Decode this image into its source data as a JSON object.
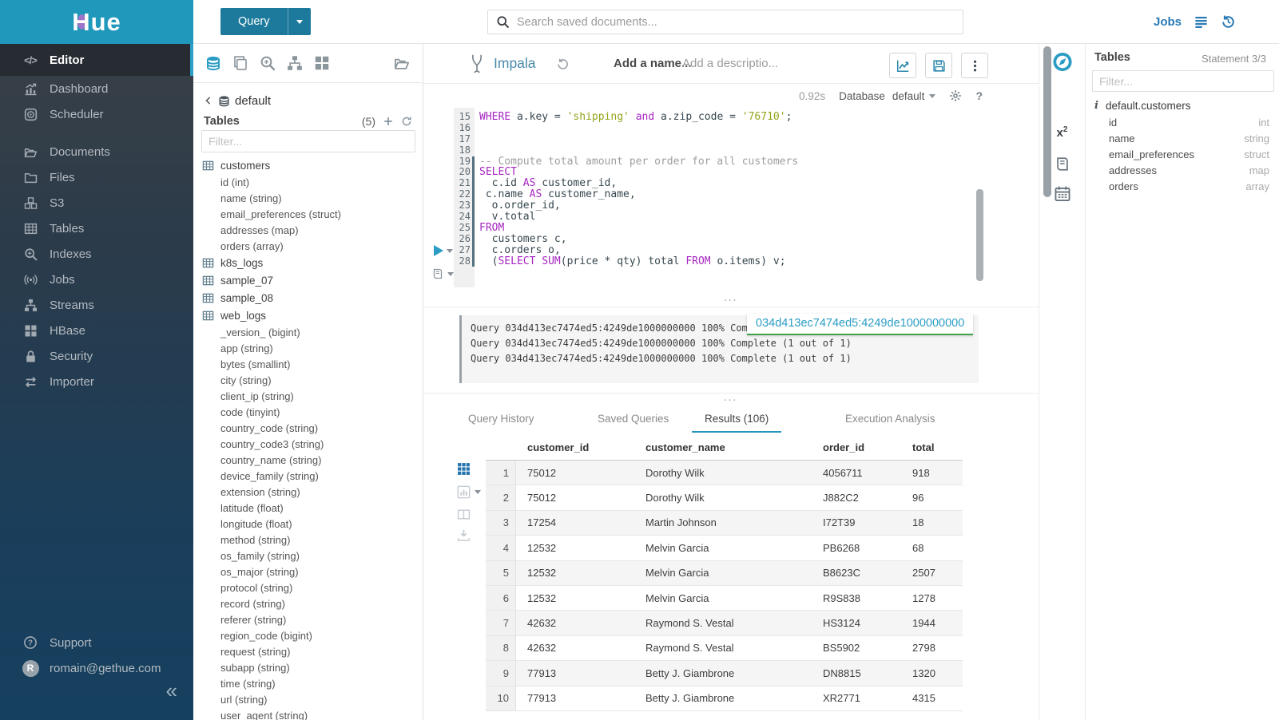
{
  "brand": {
    "letter": "H",
    "rest": "ue"
  },
  "topbar": {
    "query_label": "Query",
    "search_placeholder": "Search saved documents...",
    "jobs_label": "Jobs"
  },
  "sidebar": {
    "items": [
      {
        "label": "Editor",
        "icon": "code-icon",
        "active": true
      },
      {
        "label": "Dashboard",
        "icon": "dashboard-icon"
      },
      {
        "label": "Scheduler",
        "icon": "scheduler-icon"
      },
      {
        "label": "Documents",
        "icon": "documents-icon",
        "gap": true
      },
      {
        "label": "Files",
        "icon": "folder-icon"
      },
      {
        "label": "S3",
        "icon": "cubes-icon"
      },
      {
        "label": "Tables",
        "icon": "table-icon"
      },
      {
        "label": "Indexes",
        "icon": "search-plus-icon"
      },
      {
        "label": "Jobs",
        "icon": "signal-icon"
      },
      {
        "label": "Streams",
        "icon": "sitemap-icon"
      },
      {
        "label": "HBase",
        "icon": "grid-icon"
      },
      {
        "label": "Security",
        "icon": "lock-icon"
      },
      {
        "label": "Importer",
        "icon": "swap-icon"
      }
    ],
    "support_label": "Support",
    "user_email": "romain@gethue.com",
    "avatar_initial": "R",
    "collapse_glyph": "«"
  },
  "left_assist": {
    "breadcrumb": "default",
    "title": "Tables",
    "count": "(5)",
    "filter_placeholder": "Filter...",
    "tree": [
      {
        "name": "customers",
        "columns": [
          "id (int)",
          "name (string)",
          "email_preferences (struct)",
          "addresses (map)",
          "orders (array)"
        ]
      },
      {
        "name": "k8s_logs",
        "columns": []
      },
      {
        "name": "sample_07",
        "columns": []
      },
      {
        "name": "sample_08",
        "columns": []
      },
      {
        "name": "web_logs",
        "columns": [
          "_version_ (bigint)",
          "app (string)",
          "bytes (smallint)",
          "city (string)",
          "client_ip (string)",
          "code (tinyint)",
          "country_code (string)",
          "country_code3 (string)",
          "country_name (string)",
          "device_family (string)",
          "extension (string)",
          "latitude (float)",
          "longitude (float)",
          "method (string)",
          "os_family (string)",
          "os_major (string)",
          "protocol (string)",
          "record (string)",
          "referer (string)",
          "region_code (bigint)",
          "request (string)",
          "subapp (string)",
          "time (string)",
          "url (string)",
          "user_agent (string)"
        ]
      }
    ]
  },
  "editor": {
    "engine": "Impala",
    "name_placeholder": "Add a name...",
    "description_placeholder": "Add a descriptio...",
    "execution_time": "0.92s",
    "database_label": "Database",
    "database_value": "default",
    "lines": [
      {
        "n": 15,
        "segs": [
          [
            "kw",
            "WHERE"
          ],
          [
            "pln",
            " a.key = "
          ],
          [
            "str",
            "'shipping'"
          ],
          [
            "pln",
            " "
          ],
          [
            "kw",
            "and"
          ],
          [
            "pln",
            " a.zip_code = "
          ],
          [
            "str",
            "'76710'"
          ],
          [
            "pln",
            ";"
          ]
        ]
      },
      {
        "n": 16,
        "segs": []
      },
      {
        "n": 17,
        "segs": []
      },
      {
        "n": 18,
        "segs": []
      },
      {
        "n": 19,
        "marker": true,
        "segs": [
          [
            "cm",
            "-- Compute total amount per order for all customers"
          ]
        ]
      },
      {
        "n": 20,
        "marker": true,
        "segs": [
          [
            "kw",
            "SELECT"
          ]
        ]
      },
      {
        "n": 21,
        "marker": true,
        "segs": [
          [
            "pln",
            "  c.id "
          ],
          [
            "kw",
            "AS"
          ],
          [
            "pln",
            " customer_id,"
          ]
        ]
      },
      {
        "n": 22,
        "marker": true,
        "segs": [
          [
            "pln",
            " c.name "
          ],
          [
            "kw",
            "AS"
          ],
          [
            "pln",
            " customer_name,"
          ]
        ]
      },
      {
        "n": 23,
        "marker": true,
        "segs": [
          [
            "pln",
            "  o.order_id,"
          ]
        ]
      },
      {
        "n": 24,
        "marker": true,
        "segs": [
          [
            "pln",
            "  v.total"
          ]
        ]
      },
      {
        "n": 25,
        "marker": true,
        "segs": [
          [
            "kw",
            "FROM"
          ]
        ]
      },
      {
        "n": 26,
        "marker": true,
        "segs": [
          [
            "pln",
            "  customers c,"
          ]
        ]
      },
      {
        "n": 27,
        "marker": true,
        "segs": [
          [
            "pln",
            "  c.orders o,"
          ]
        ]
      },
      {
        "n": 28,
        "marker": true,
        "segs": [
          [
            "pln",
            "  ("
          ],
          [
            "kw",
            "SELECT"
          ],
          [
            "pln",
            " "
          ],
          [
            "kw",
            "SUM"
          ],
          [
            "pln",
            "(price * qty) total "
          ],
          [
            "kw",
            "FROM"
          ],
          [
            "pln",
            " o.items) v;"
          ]
        ]
      }
    ],
    "log_lines": [
      "Query 034d413ec7474ed5:4249de1000000000 100% Complete (1 out of 1)",
      "Query 034d413ec7474ed5:4249de1000000000 100% Complete (1 out of 1)",
      "Query 034d413ec7474ed5:4249de1000000000 100% Complete (1 out of 1)"
    ],
    "query_id_tooltip": "034d413ec7474ed5:4249de1000000000"
  },
  "tabs": [
    {
      "label": "Query History",
      "active": false
    },
    {
      "label": "Saved Queries",
      "active": false
    },
    {
      "label": "Results (106)",
      "active": true
    },
    {
      "label": "Execution Analysis",
      "active": false
    }
  ],
  "results": {
    "columns": [
      "customer_id",
      "customer_name",
      "order_id",
      "total"
    ],
    "rows": [
      [
        "1",
        "75012",
        "Dorothy Wilk",
        "4056711",
        "918"
      ],
      [
        "2",
        "75012",
        "Dorothy Wilk",
        "J882C2",
        "96"
      ],
      [
        "3",
        "17254",
        "Martin Johnson",
        "I72T39",
        "18"
      ],
      [
        "4",
        "12532",
        "Melvin Garcia",
        "PB6268",
        "68"
      ],
      [
        "5",
        "12532",
        "Melvin Garcia",
        "B8623C",
        "2507"
      ],
      [
        "6",
        "12532",
        "Melvin Garcia",
        "R9S838",
        "1278"
      ],
      [
        "7",
        "42632",
        "Raymond S. Vestal",
        "HS3124",
        "1944"
      ],
      [
        "8",
        "42632",
        "Raymond S. Vestal",
        "BS5902",
        "2798"
      ],
      [
        "9",
        "77913",
        "Betty J. Giambrone",
        "DN8815",
        "1320"
      ],
      [
        "10",
        "77913",
        "Betty J. Giambrone",
        "XR2771",
        "4315"
      ]
    ]
  },
  "right_assist": {
    "title": "Tables",
    "statement": "Statement 3/3",
    "filter_placeholder": "Filter...",
    "table_name": "default.customers",
    "columns": [
      {
        "name": "id",
        "type": "int"
      },
      {
        "name": "name",
        "type": "string"
      },
      {
        "name": "email_preferences",
        "type": "struct"
      },
      {
        "name": "addresses",
        "type": "map"
      },
      {
        "name": "orders",
        "type": "array"
      }
    ]
  },
  "colors": {
    "brand": "#2098bb",
    "accent": "#2b9dc4",
    "keyword": "#a626c1",
    "string": "#97a41c",
    "comment": "#9e9e9e",
    "tab_underline": "#2596be",
    "tooltip_underline": "#43a047"
  }
}
